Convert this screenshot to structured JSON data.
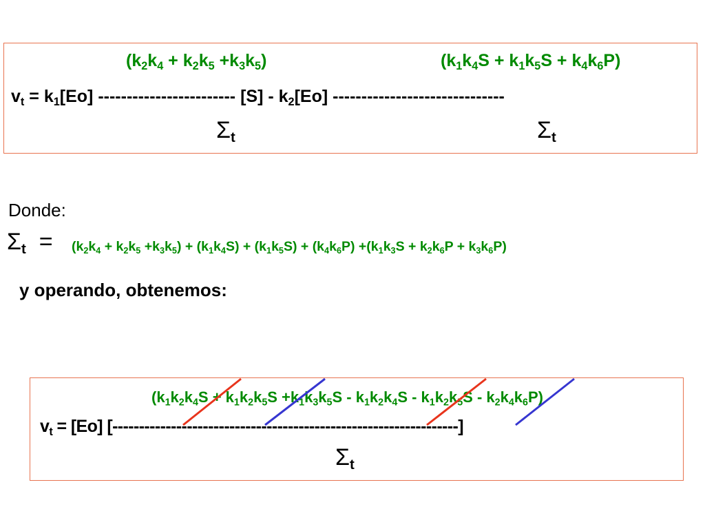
{
  "box1": {
    "numerator_left": [
      "(k",
      "2",
      "k",
      "4",
      " + k",
      "2",
      "k",
      "5",
      " +k",
      "3",
      "k",
      "5",
      ")"
    ],
    "numerator_right": [
      "(k",
      "1",
      "k",
      "4",
      "S + k",
      "1",
      "k",
      "5",
      "S + k",
      "4",
      "k",
      "6",
      "P)"
    ],
    "main": [
      "v",
      "t",
      " = k",
      "1",
      "[Eo] ------------------------ [S] - k",
      "2",
      "[Eo] ------------------------------"
    ],
    "denominator_left": [
      "Σ",
      "t"
    ],
    "denominator_right": [
      "Σ",
      "t"
    ]
  },
  "donde": "Donde:",
  "sigma_def": {
    "lhs": [
      "Σ",
      "t",
      "  ="
    ],
    "rhs": [
      "(k",
      "2",
      "k",
      "4",
      " + k",
      "2",
      "k",
      "5",
      " +k",
      "3",
      "k",
      "5",
      ") + (k",
      "1",
      "k",
      "4",
      "S) + (k",
      "1",
      "k",
      "5",
      "S) + (k",
      "4",
      "k",
      "6",
      "P) +(k",
      "1",
      "k",
      "3",
      "S + k",
      "2",
      "k",
      "6",
      "P + k",
      "3",
      "k",
      "6",
      "P)"
    ]
  },
  "operando": "y operando, obtenemos:",
  "box2": {
    "numerator": [
      "(k",
      "1",
      "k",
      "2",
      "k",
      "4",
      "S + k",
      "1",
      "k",
      "2",
      "k",
      "5",
      "S +k",
      "1",
      "k",
      "3",
      "k",
      "5",
      "S - k",
      "1",
      "k",
      "2",
      "k",
      "4",
      "S - k",
      "1",
      "k",
      "2",
      "k",
      "5",
      "S - k",
      "2",
      "k",
      "4",
      "k",
      "6",
      "P)"
    ],
    "main": [
      "v",
      "t",
      " = [Eo] [-----------------------------------------------------------------]"
    ],
    "denominator": [
      "Σ",
      "t"
    ]
  }
}
